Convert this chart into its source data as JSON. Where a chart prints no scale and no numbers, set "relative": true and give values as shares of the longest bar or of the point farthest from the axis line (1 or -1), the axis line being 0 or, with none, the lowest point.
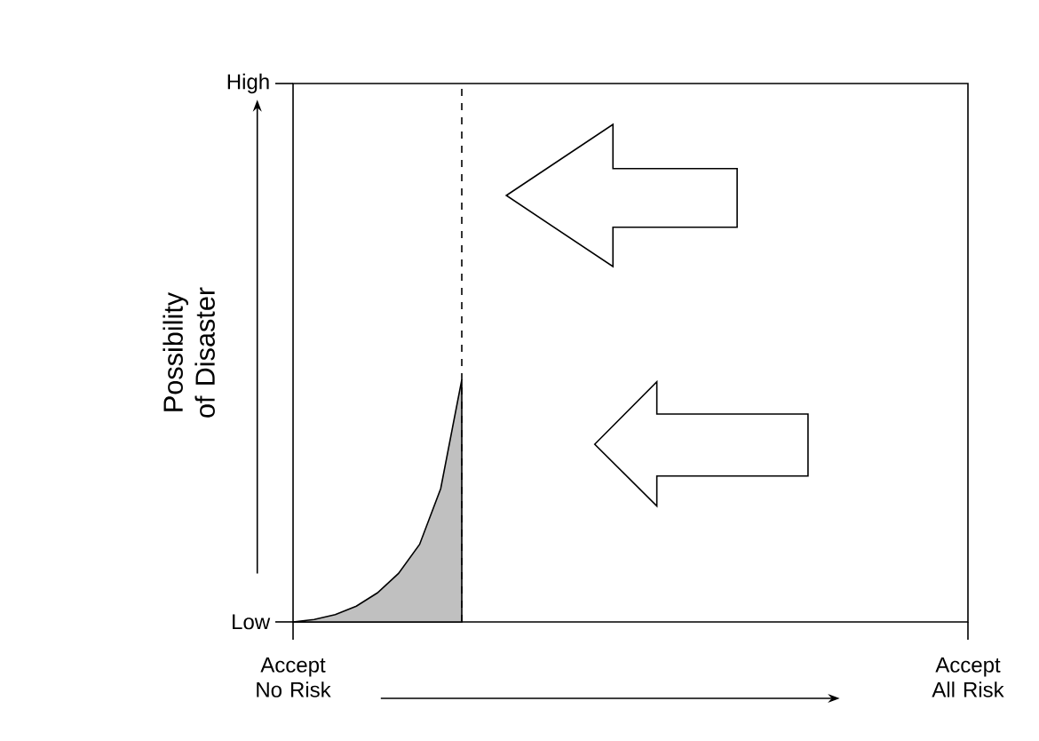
{
  "chart_data": {
    "type": "area",
    "relative": true,
    "ylabel": "Possibility of Disaster",
    "categories": [
      "Accept No Risk",
      null,
      null,
      null,
      null,
      null,
      null,
      null,
      null,
      null,
      null,
      null,
      null,
      null,
      null,
      null,
      null,
      null,
      null,
      null,
      null,
      null,
      null,
      null,
      null,
      null,
      null,
      null,
      null,
      null,
      null,
      null,
      "Accept All Risk"
    ],
    "values": [
      0,
      0.01,
      0.03,
      0.065,
      0.12,
      0.2,
      0.32,
      0.55,
      1,
      null,
      null,
      null,
      null,
      null,
      null,
      null,
      null,
      null,
      null,
      null,
      null,
      null,
      null,
      null,
      null,
      null,
      null,
      null,
      null,
      null,
      null,
      null,
      null
    ],
    "color": "#c0c0c0",
    "annotations": [
      "Low",
      "High"
    ]
  }
}
